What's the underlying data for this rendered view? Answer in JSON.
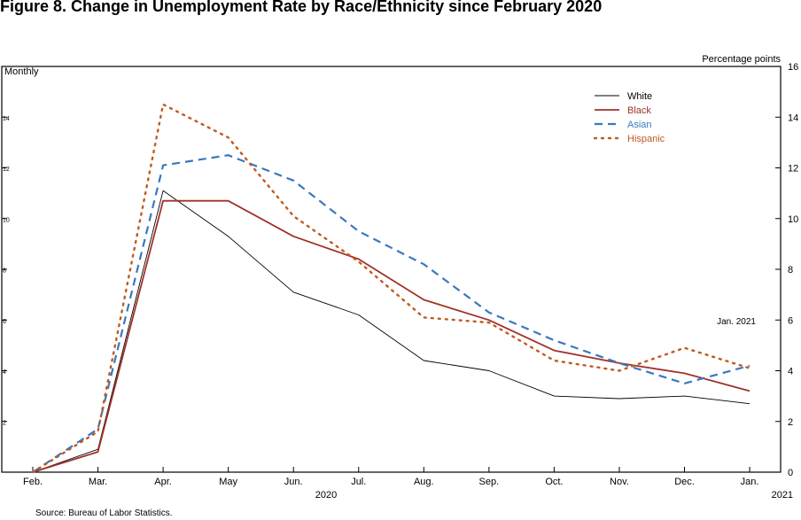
{
  "chart_data": {
    "type": "line",
    "title": "Figure 8. Change in Unemployment Rate by Race/Ethnicity since February 2020",
    "frequency_label": "Monthly",
    "ylabel": "Percentage points",
    "ylim": [
      0,
      16
    ],
    "yticks": [
      "0",
      "2",
      "4",
      "6",
      "8",
      "10",
      "12",
      "14",
      "16"
    ],
    "left_ticks": [
      "2",
      "4",
      "6",
      "8",
      "10",
      "12",
      "14"
    ],
    "categories": [
      "Feb.",
      "Mar.",
      "Apr.",
      "May",
      "Jun.",
      "Jul.",
      "Aug.",
      "Sep.",
      "Oct.",
      "Nov.",
      "Dec.",
      "Jan."
    ],
    "year_labels": [
      {
        "label": "2020",
        "category_index": 4.5
      },
      {
        "label": "2021",
        "category_index": 11.5
      }
    ],
    "annotation": "Jan. 2021",
    "legend_position": "top-right",
    "source": "Source: Bureau of Labor Statistics.",
    "series": [
      {
        "name": "White",
        "color": "#000000",
        "style": "solid",
        "width": 0.9,
        "values": [
          0,
          0.9,
          11.1,
          9.3,
          7.1,
          6.2,
          4.4,
          4.0,
          3.0,
          2.9,
          3.0,
          2.7
        ]
      },
      {
        "name": "Black",
        "color": "#a0322a",
        "style": "solid",
        "width": 1.8,
        "values": [
          0,
          0.8,
          10.7,
          10.7,
          9.3,
          8.4,
          6.8,
          6.0,
          4.8,
          4.3,
          3.9,
          3.2
        ]
      },
      {
        "name": "Asian",
        "color": "#3a78c0",
        "style": "dashed",
        "width": 2.2,
        "values": [
          0,
          1.7,
          12.1,
          12.5,
          11.5,
          9.5,
          8.2,
          6.3,
          5.2,
          4.3,
          3.5,
          4.2
        ]
      },
      {
        "name": "Hispanic",
        "color": "#c05a1e",
        "style": "dotted",
        "width": 2.4,
        "values": [
          0,
          1.6,
          14.5,
          13.2,
          10.1,
          8.3,
          6.1,
          5.9,
          4.4,
          4.0,
          4.9,
          4.1
        ]
      }
    ]
  }
}
